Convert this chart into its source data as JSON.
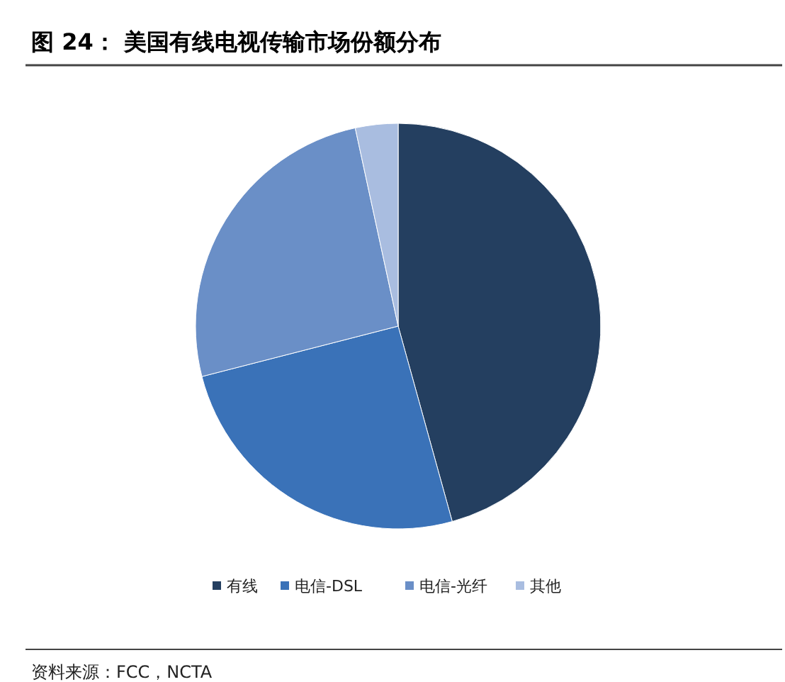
{
  "chart_data": {
    "type": "pie",
    "title": "图 24：  美国有线电视传输市场份额分布",
    "categories": [
      "有线",
      "电信-DSL",
      "电信-光纤",
      "其他"
    ],
    "values": [
      45.7,
      25.3,
      25.6,
      3.4
    ],
    "colors": [
      "#243f60",
      "#3a72b8",
      "#6a8fc7",
      "#a9bde0"
    ],
    "legend": "bottom",
    "annotations": [
      "资料来源：FCC，NCTA"
    ]
  }
}
